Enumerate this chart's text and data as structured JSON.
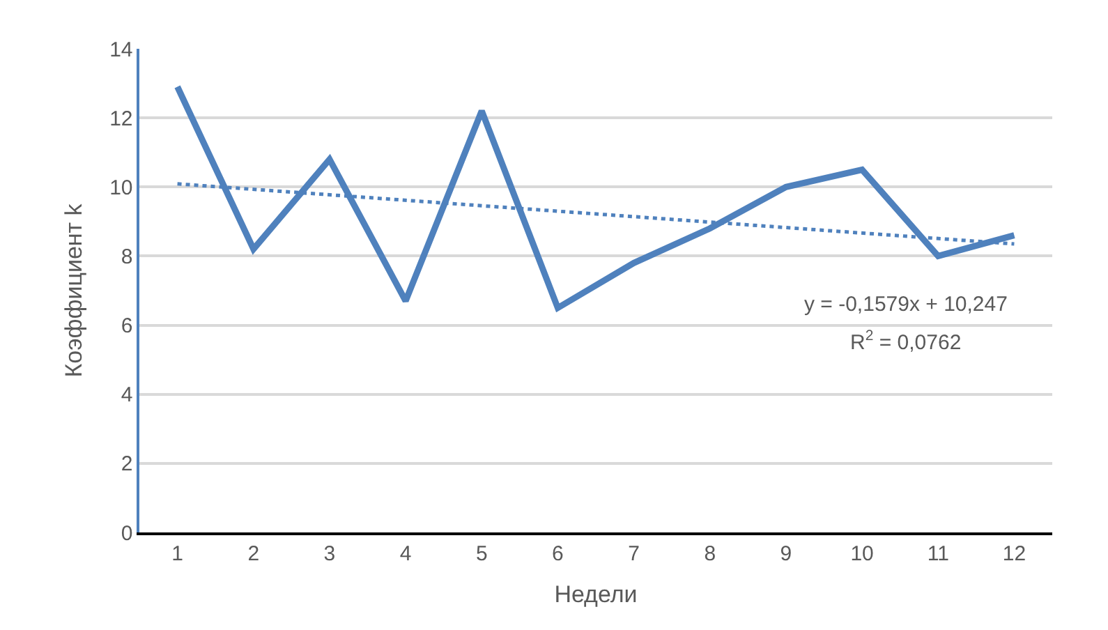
{
  "chart_data": {
    "type": "line",
    "xlabel": "Недели",
    "ylabel": "Коэффициент k",
    "x": [
      1,
      2,
      3,
      4,
      5,
      6,
      7,
      8,
      9,
      10,
      11,
      12
    ],
    "xlim": [
      0.5,
      12.5
    ],
    "xticks": [
      1,
      2,
      3,
      4,
      5,
      6,
      7,
      8,
      9,
      10,
      11,
      12
    ],
    "ylim": [
      0,
      14
    ],
    "yticks": [
      0,
      2,
      4,
      6,
      8,
      10,
      12,
      14
    ],
    "grid": "y",
    "marker": "none",
    "series": [
      {
        "color": "#4f81bd",
        "line_style": "solid",
        "values": [
          12.9,
          8.2,
          10.8,
          6.7,
          12.2,
          6.5,
          7.8,
          8.8,
          10.0,
          10.5,
          8.0,
          8.6
        ]
      },
      {
        "color": "#4f81bd",
        "line_style": "dotted",
        "x": [
          1,
          12
        ],
        "values": [
          10.09,
          8.35
        ]
      }
    ],
    "annotations": [
      "y = -0,1579x + 10,247",
      "R$^{2}$ = 0,0762"
    ]
  }
}
